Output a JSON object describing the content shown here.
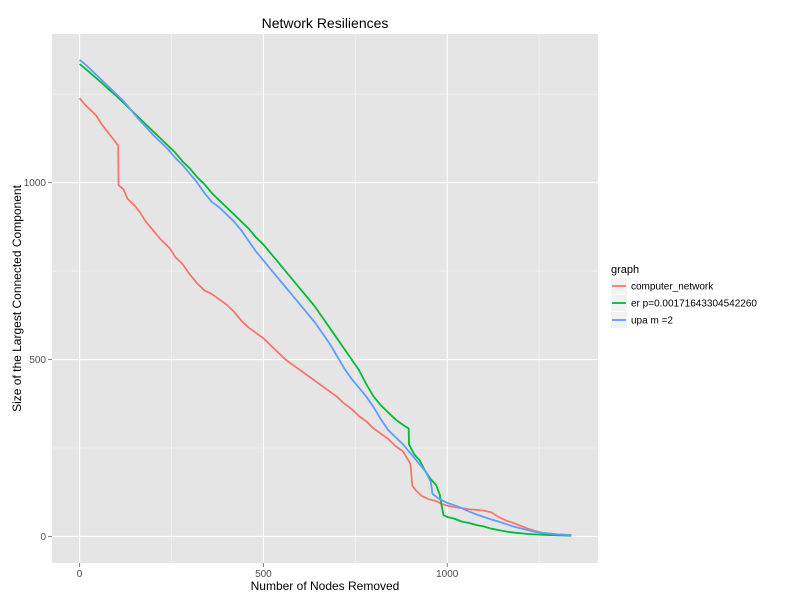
{
  "chart_data": {
    "type": "line",
    "title": "Network Resiliences",
    "xlabel": "Number of Nodes Removed",
    "ylabel": "Size of the Largest Connected Component",
    "xlim": [
      -75,
      1410
    ],
    "ylim": [
      -75,
      1420
    ],
    "x_ticks": [
      0,
      500,
      1000
    ],
    "x_minor_ticks": [
      250,
      750,
      1250
    ],
    "y_ticks": [
      0,
      500,
      1000
    ],
    "y_minor_ticks": [
      250,
      750,
      1250
    ],
    "grid": true,
    "legend": {
      "title": "graph",
      "position": "right"
    },
    "series": [
      {
        "name": "computer_network",
        "color": "#F8766D",
        "points": [
          [
            0,
            1239
          ],
          [
            15,
            1220
          ],
          [
            30,
            1205
          ],
          [
            45,
            1190
          ],
          [
            60,
            1165
          ],
          [
            75,
            1145
          ],
          [
            90,
            1125
          ],
          [
            105,
            1105
          ],
          [
            106,
            993
          ],
          [
            120,
            980
          ],
          [
            130,
            955
          ],
          [
            150,
            935
          ],
          [
            165,
            915
          ],
          [
            180,
            890
          ],
          [
            200,
            865
          ],
          [
            220,
            840
          ],
          [
            245,
            815
          ],
          [
            260,
            790
          ],
          [
            280,
            770
          ],
          [
            300,
            740
          ],
          [
            320,
            715
          ],
          [
            340,
            695
          ],
          [
            360,
            685
          ],
          [
            380,
            670
          ],
          [
            400,
            655
          ],
          [
            420,
            635
          ],
          [
            440,
            610
          ],
          [
            460,
            590
          ],
          [
            480,
            575
          ],
          [
            500,
            560
          ],
          [
            520,
            540
          ],
          [
            540,
            520
          ],
          [
            560,
            500
          ],
          [
            580,
            485
          ],
          [
            600,
            470
          ],
          [
            620,
            455
          ],
          [
            640,
            440
          ],
          [
            660,
            425
          ],
          [
            680,
            410
          ],
          [
            700,
            395
          ],
          [
            720,
            375
          ],
          [
            740,
            360
          ],
          [
            760,
            340
          ],
          [
            780,
            325
          ],
          [
            800,
            305
          ],
          [
            820,
            290
          ],
          [
            840,
            275
          ],
          [
            860,
            255
          ],
          [
            880,
            240
          ],
          [
            900,
            205
          ],
          [
            905,
            143
          ],
          [
            915,
            130
          ],
          [
            930,
            115
          ],
          [
            950,
            105
          ],
          [
            970,
            100
          ],
          [
            985,
            92
          ],
          [
            1000,
            87
          ],
          [
            1020,
            83
          ],
          [
            1040,
            80
          ],
          [
            1060,
            77
          ],
          [
            1080,
            75
          ],
          [
            1100,
            73
          ],
          [
            1120,
            68
          ],
          [
            1140,
            55
          ],
          [
            1160,
            45
          ],
          [
            1180,
            38
          ],
          [
            1200,
            30
          ],
          [
            1220,
            22
          ],
          [
            1240,
            15
          ],
          [
            1260,
            10
          ],
          [
            1280,
            8
          ],
          [
            1300,
            6
          ],
          [
            1320,
            4
          ],
          [
            1338,
            3
          ]
        ]
      },
      {
        "name": "er p=0.00171643304542260",
        "color": "#00BA38",
        "points": [
          [
            0,
            1335
          ],
          [
            20,
            1318
          ],
          [
            40,
            1300
          ],
          [
            60,
            1282
          ],
          [
            80,
            1263
          ],
          [
            100,
            1245
          ],
          [
            120,
            1225
          ],
          [
            140,
            1205
          ],
          [
            160,
            1185
          ],
          [
            180,
            1165
          ],
          [
            200,
            1145
          ],
          [
            220,
            1125
          ],
          [
            240,
            1105
          ],
          [
            260,
            1085
          ],
          [
            280,
            1060
          ],
          [
            300,
            1040
          ],
          [
            320,
            1015
          ],
          [
            340,
            995
          ],
          [
            360,
            970
          ],
          [
            380,
            950
          ],
          [
            400,
            930
          ],
          [
            420,
            910
          ],
          [
            440,
            890
          ],
          [
            460,
            870
          ],
          [
            480,
            845
          ],
          [
            500,
            825
          ],
          [
            520,
            800
          ],
          [
            540,
            775
          ],
          [
            560,
            750
          ],
          [
            580,
            725
          ],
          [
            600,
            700
          ],
          [
            620,
            675
          ],
          [
            640,
            650
          ],
          [
            660,
            620
          ],
          [
            680,
            590
          ],
          [
            700,
            560
          ],
          [
            720,
            530
          ],
          [
            740,
            500
          ],
          [
            760,
            470
          ],
          [
            780,
            430
          ],
          [
            800,
            395
          ],
          [
            820,
            370
          ],
          [
            840,
            350
          ],
          [
            860,
            330
          ],
          [
            880,
            315
          ],
          [
            895,
            305
          ],
          [
            896,
            260
          ],
          [
            910,
            232
          ],
          [
            925,
            215
          ],
          [
            940,
            185
          ],
          [
            955,
            162
          ],
          [
            970,
            145
          ],
          [
            980,
            117
          ],
          [
            985,
            85
          ],
          [
            990,
            60
          ],
          [
            1000,
            55
          ],
          [
            1020,
            50
          ],
          [
            1040,
            42
          ],
          [
            1060,
            38
          ],
          [
            1080,
            32
          ],
          [
            1100,
            28
          ],
          [
            1120,
            22
          ],
          [
            1140,
            18
          ],
          [
            1160,
            14
          ],
          [
            1180,
            11
          ],
          [
            1200,
            9
          ],
          [
            1220,
            7
          ],
          [
            1240,
            6
          ],
          [
            1260,
            5
          ],
          [
            1280,
            4
          ],
          [
            1300,
            3
          ],
          [
            1337,
            2
          ]
        ]
      },
      {
        "name": "upa m =2",
        "color": "#619CFF",
        "points": [
          [
            0,
            1347
          ],
          [
            20,
            1330
          ],
          [
            40,
            1310
          ],
          [
            60,
            1290
          ],
          [
            80,
            1270
          ],
          [
            100,
            1250
          ],
          [
            120,
            1230
          ],
          [
            140,
            1205
          ],
          [
            160,
            1180
          ],
          [
            180,
            1158
          ],
          [
            200,
            1135
          ],
          [
            220,
            1115
          ],
          [
            240,
            1095
          ],
          [
            260,
            1070
          ],
          [
            280,
            1050
          ],
          [
            300,
            1025
          ],
          [
            320,
            1000
          ],
          [
            340,
            970
          ],
          [
            360,
            945
          ],
          [
            380,
            930
          ],
          [
            400,
            910
          ],
          [
            420,
            890
          ],
          [
            440,
            865
          ],
          [
            460,
            835
          ],
          [
            480,
            805
          ],
          [
            500,
            780
          ],
          [
            520,
            755
          ],
          [
            540,
            730
          ],
          [
            560,
            705
          ],
          [
            580,
            680
          ],
          [
            600,
            655
          ],
          [
            620,
            630
          ],
          [
            640,
            605
          ],
          [
            660,
            575
          ],
          [
            680,
            545
          ],
          [
            700,
            510
          ],
          [
            720,
            475
          ],
          [
            740,
            445
          ],
          [
            760,
            420
          ],
          [
            780,
            395
          ],
          [
            800,
            365
          ],
          [
            820,
            330
          ],
          [
            840,
            300
          ],
          [
            860,
            280
          ],
          [
            880,
            260
          ],
          [
            900,
            235
          ],
          [
            920,
            210
          ],
          [
            940,
            185
          ],
          [
            955,
            155
          ],
          [
            960,
            120
          ],
          [
            980,
            105
          ],
          [
            1000,
            95
          ],
          [
            1020,
            88
          ],
          [
            1040,
            80
          ],
          [
            1060,
            70
          ],
          [
            1080,
            62
          ],
          [
            1100,
            55
          ],
          [
            1120,
            48
          ],
          [
            1140,
            42
          ],
          [
            1160,
            35
          ],
          [
            1180,
            28
          ],
          [
            1200,
            23
          ],
          [
            1220,
            18
          ],
          [
            1240,
            13
          ],
          [
            1260,
            10
          ],
          [
            1280,
            8
          ],
          [
            1300,
            6
          ],
          [
            1320,
            5
          ],
          [
            1337,
            4
          ]
        ]
      }
    ]
  }
}
